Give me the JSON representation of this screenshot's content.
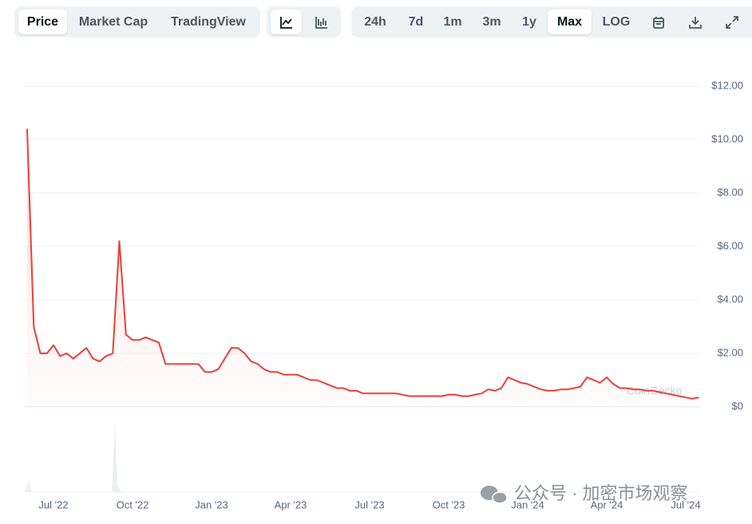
{
  "toolbar": {
    "view_tabs": [
      "Price",
      "Market Cap",
      "TradingView"
    ],
    "range_tabs": [
      "24h",
      "7d",
      "1m",
      "3m",
      "1y",
      "Max",
      "LOG"
    ]
  },
  "chart_data": {
    "type": "line",
    "color": "#e8403a",
    "categories": [
      null,
      null,
      null,
      null,
      "Jul '22",
      null,
      null,
      null,
      null,
      null,
      null,
      null,
      null,
      null,
      null,
      null,
      "Oct '22",
      null,
      null,
      null,
      null,
      null,
      null,
      null,
      null,
      null,
      null,
      null,
      "Jan '23",
      null,
      null,
      null,
      null,
      null,
      null,
      null,
      null,
      null,
      null,
      null,
      "Apr '23",
      null,
      null,
      null,
      null,
      null,
      null,
      null,
      null,
      null,
      null,
      null,
      "Jul '23",
      null,
      null,
      null,
      null,
      null,
      null,
      null,
      null,
      null,
      null,
      null,
      "Oct '23",
      null,
      null,
      null,
      null,
      null,
      null,
      null,
      null,
      null,
      null,
      null,
      "Jan '24",
      null,
      null,
      null,
      null,
      null,
      null,
      null,
      null,
      null,
      null,
      null,
      "Apr '24",
      null,
      null,
      null,
      null,
      null,
      null,
      null,
      null,
      null,
      null,
      null,
      "Jul '24",
      null,
      null
    ],
    "values": [
      10.4,
      3.0,
      2.0,
      2.0,
      2.3,
      1.9,
      2.0,
      1.8,
      2.0,
      2.2,
      1.8,
      1.7,
      1.9,
      2.0,
      6.2,
      2.7,
      2.5,
      2.5,
      2.6,
      2.5,
      2.4,
      1.6,
      1.6,
      1.6,
      1.6,
      1.6,
      1.6,
      1.3,
      1.3,
      1.4,
      1.8,
      2.2,
      2.2,
      2.0,
      1.7,
      1.6,
      1.4,
      1.3,
      1.3,
      1.2,
      1.2,
      1.2,
      1.1,
      1.0,
      1.0,
      0.9,
      0.8,
      0.7,
      0.7,
      0.6,
      0.6,
      0.5,
      0.5,
      0.5,
      0.5,
      0.5,
      0.5,
      0.45,
      0.4,
      0.4,
      0.4,
      0.4,
      0.4,
      0.4,
      0.45,
      0.45,
      0.4,
      0.4,
      0.45,
      0.5,
      0.65,
      0.6,
      0.7,
      1.1,
      1.0,
      0.9,
      0.85,
      0.75,
      0.65,
      0.6,
      0.6,
      0.65,
      0.65,
      0.7,
      0.75,
      1.1,
      1.0,
      0.9,
      1.1,
      0.85,
      0.7,
      0.7,
      0.65,
      0.65,
      0.6,
      0.6,
      0.55,
      0.5,
      0.45,
      0.4,
      0.35,
      0.3,
      0.35
    ],
    "ylim": [
      0,
      12
    ],
    "yticks": [
      {
        "value": 0,
        "label": "$0"
      },
      {
        "value": 2,
        "label": "$2.00"
      },
      {
        "value": 4,
        "label": "$4.00"
      },
      {
        "value": 6,
        "label": "$6.00"
      },
      {
        "value": 8,
        "label": "$8.00"
      },
      {
        "value": 10,
        "label": "$10.00"
      },
      {
        "value": 12,
        "label": "$12.00"
      }
    ],
    "grid": true
  },
  "watermark": "CoinGecko",
  "caption": "公众号 · 加密市场观察"
}
